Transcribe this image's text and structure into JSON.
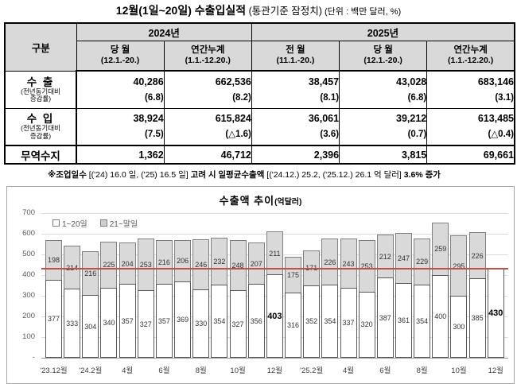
{
  "title": {
    "main": "12월(1일~20일) 수출입실적",
    "sub": " (통관기준 잠정치)",
    "unit": "  (단위 : 백만 달러, %)"
  },
  "table": {
    "corner_label": "구분",
    "year_groups": [
      {
        "label": "2024년"
      },
      {
        "label": "2025년"
      }
    ],
    "col_headers": [
      {
        "line1": "당 월",
        "line2": "(12.1.-20.)"
      },
      {
        "line1": "연간누계",
        "line2": "(1.1.-12.20.)"
      },
      {
        "line1": "전 월",
        "line2": "(11.1.-20.)"
      },
      {
        "line1": "당 월",
        "line2": "(12.1.-20.)"
      },
      {
        "line1": "연간누계",
        "line2": "(1.1.-12.20.)"
      }
    ],
    "rows": [
      {
        "label": "수 출",
        "sublabel1": "(전년동기대비",
        "sublabel2": "증감률)",
        "cells": [
          {
            "value": "40,286",
            "pct": "(6.8)"
          },
          {
            "value": "662,536",
            "pct": "(8.2)"
          },
          {
            "value": "38,457",
            "pct": "(8.1)"
          },
          {
            "value": "43,028",
            "pct": "(6.8)"
          },
          {
            "value": "683,146",
            "pct": "(3.1)"
          }
        ]
      },
      {
        "label": "수 입",
        "sublabel1": "(전년동기대비",
        "sublabel2": "증감률)",
        "cells": [
          {
            "value": "38,924",
            "pct": "(7.5)"
          },
          {
            "value": "615,824",
            "pct": "(△1.6)"
          },
          {
            "value": "36,061",
            "pct": "(3.6)"
          },
          {
            "value": "39,212",
            "pct": "(0.7)"
          },
          {
            "value": "613,485",
            "pct": "(△0.4)"
          }
        ]
      }
    ],
    "balance_row": {
      "label": "무역수지",
      "cells": [
        "1,362",
        "46,712",
        "2,396",
        "3,815",
        "69,661"
      ]
    }
  },
  "note": {
    "p1": "※조업일수 ",
    "p2": "[('24) 16.0 일, ('25) 16.5 일] ",
    "p3": "고려 시 일평균수출액 ",
    "p4": "[('24.12.) 25.2, ('25.12.) 26.1 억 달러] ",
    "p5": "3.6% 증가"
  },
  "chart_data": {
    "type": "bar",
    "stacked": true,
    "title": "수출액 추이",
    "title_unit": "(억달러)",
    "legend": [
      "1~20일",
      "21~말일"
    ],
    "legend_position": "top-left",
    "categories": [
      "'23.12월",
      "",
      "'24.2월",
      "",
      "4월",
      "",
      "6월",
      "",
      "8월",
      "",
      "10월",
      "",
      "12월",
      "",
      "'25.2월",
      "",
      "4월",
      "",
      "6월",
      "",
      "8월",
      "",
      "10월",
      "",
      "12월"
    ],
    "series": [
      {
        "name": "1~20일",
        "values": [
          377,
          333,
          304,
          340,
          357,
          327,
          357,
          369,
          330,
          354,
          327,
          356,
          403,
          316,
          352,
          354,
          337,
          320,
          387,
          361,
          354,
          400,
          300,
          385,
          430
        ]
      },
      {
        "name": "21~말일",
        "values": [
          198,
          214,
          216,
          225,
          204,
          253,
          216,
          206,
          246,
          232,
          248,
          207,
          211,
          175,
          171,
          226,
          243,
          253,
          212,
          247,
          229,
          259,
          295,
          226,
          null
        ]
      }
    ],
    "ylim": [
      0,
      700
    ],
    "y_ticks": [
      700,
      600,
      500,
      400,
      300,
      200,
      100,
      0
    ],
    "y_tick_labels": [
      "700",
      "600",
      "500",
      "400",
      "300",
      "200",
      "100",
      "-"
    ],
    "grid": true,
    "ref_line": 430,
    "ref_line_color": "#c0504d",
    "bar_colors": [
      "#ffffff",
      "#d9d9d9"
    ],
    "bold_value_indices": [
      12,
      24
    ]
  }
}
